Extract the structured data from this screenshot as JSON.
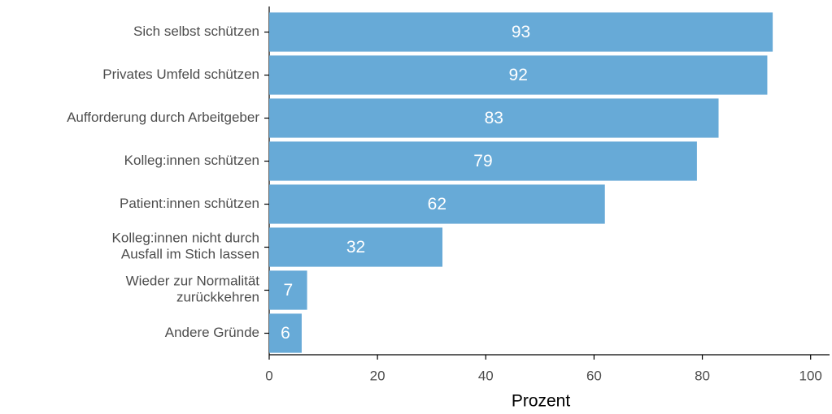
{
  "chart_data": {
    "type": "bar",
    "orientation": "horizontal",
    "categories": [
      "Sich selbst schützen",
      "Privates Umfeld schützen",
      "Aufforderung durch Arbeitgeber",
      "Kolleg:innen schützen",
      "Patient:innen schützen",
      "Kolleg:innen nicht durch\nAusfall im Stich lassen",
      "Wieder zur Normalität\nzurückkehren",
      "Andere Gründe"
    ],
    "values": [
      93,
      92,
      83,
      79,
      62,
      32,
      7,
      6
    ],
    "color": "#67aad7",
    "xlabel": "Prozent",
    "xlim": [
      0,
      103.5
    ],
    "xticks": [
      0,
      20,
      40,
      60,
      80,
      100
    ],
    "grid": false
  }
}
